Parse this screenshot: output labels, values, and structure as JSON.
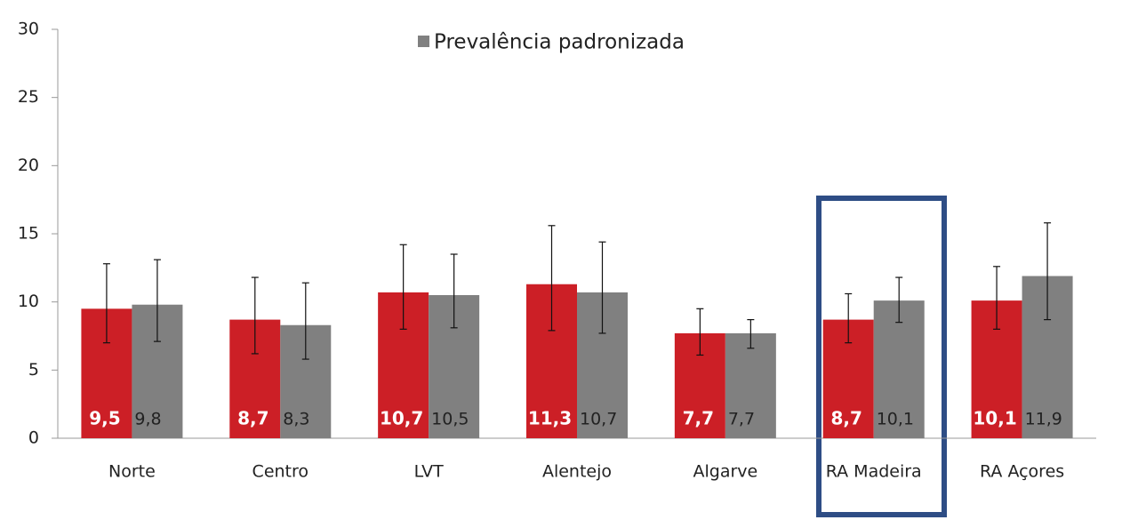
{
  "chart_data": {
    "type": "bar",
    "categories": [
      "Norte",
      "Centro",
      "LVT",
      "Alentejo",
      "Algarve",
      "RA Madeira",
      "RA Açores"
    ],
    "series": [
      {
        "color": "#cc1f26",
        "values": [
          9.5,
          8.7,
          10.7,
          11.3,
          7.7,
          8.7,
          10.1
        ],
        "value_labels": [
          "9,5",
          "8,7",
          "10,7",
          "11,3",
          "7,7",
          "8,7",
          "10,1"
        ],
        "ci_low": [
          7.0,
          6.2,
          8.0,
          7.9,
          6.1,
          7.0,
          8.0
        ],
        "ci_high": [
          12.8,
          11.8,
          14.2,
          15.6,
          9.5,
          10.6,
          12.6
        ]
      },
      {
        "name": "Prevalência padronizada",
        "color": "#808080",
        "values": [
          9.8,
          8.3,
          10.5,
          10.7,
          7.7,
          10.1,
          11.9
        ],
        "value_labels": [
          "9,8",
          "8,3",
          "10,5",
          "10,7",
          "7,7",
          "10,1",
          "11,9"
        ],
        "ci_low": [
          7.1,
          5.8,
          8.1,
          7.7,
          6.6,
          8.5,
          8.7
        ],
        "ci_high": [
          13.1,
          11.4,
          13.5,
          14.4,
          8.7,
          11.8,
          15.8
        ]
      }
    ],
    "ylim": [
      0,
      30
    ],
    "yticks": [
      0,
      5,
      10,
      15,
      20,
      25,
      30
    ],
    "grid": false,
    "legend": "top"
  }
}
